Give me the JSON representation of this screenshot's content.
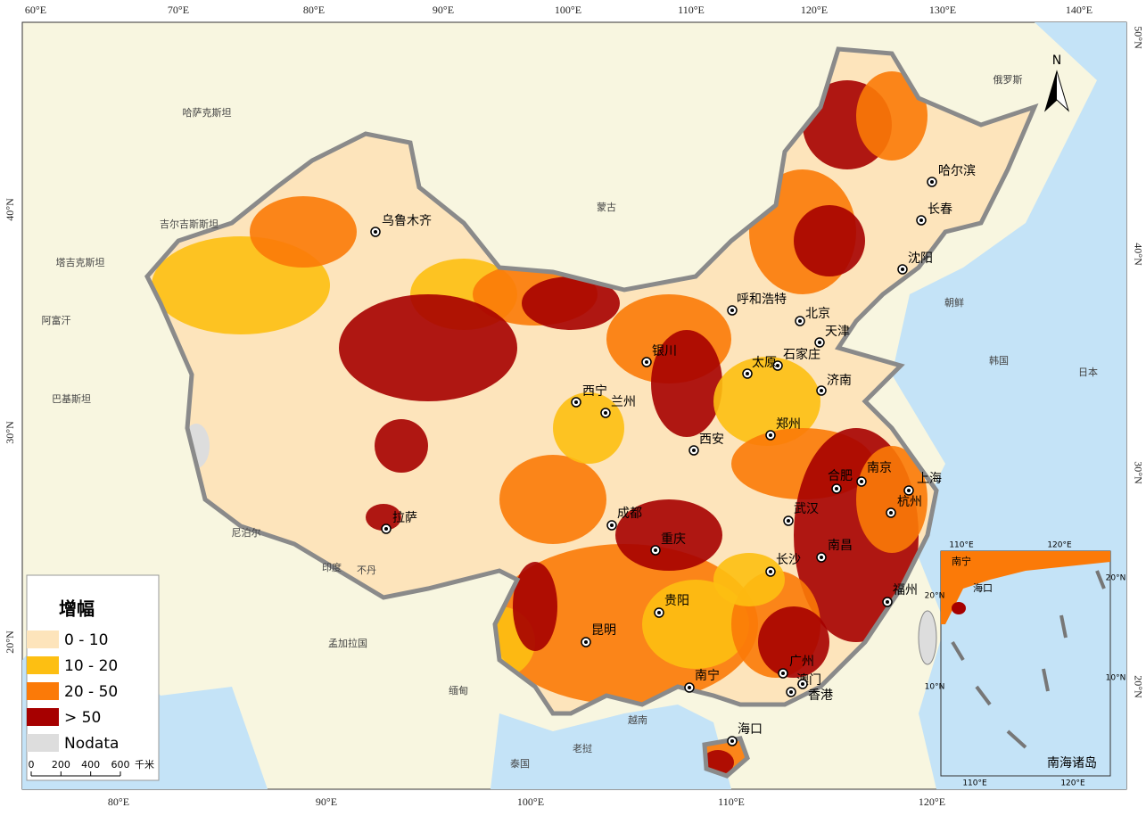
{
  "graticule": {
    "top": [
      "60°E",
      "70°E",
      "80°E",
      "90°E",
      "100°E",
      "110°E",
      "120°E",
      "130°E",
      "140°E"
    ],
    "bottom": [
      "80°E",
      "90°E",
      "100°E",
      "110°E",
      "120°E"
    ],
    "left": [
      "40°N",
      "30°N",
      "20°N"
    ],
    "right": [
      "50°N",
      "40°N",
      "30°N",
      "20°N"
    ]
  },
  "countries": [
    "哈萨克斯坦",
    "吉尔吉斯斯坦",
    "塔吉克斯坦",
    "阿富汗",
    "巴基斯坦",
    "尼泊尔",
    "印度",
    "不丹",
    "孟加拉国",
    "缅甸",
    "老挝",
    "泰国",
    "越南",
    "蒙古",
    "俄罗斯",
    "朝鲜",
    "韩国",
    "日本"
  ],
  "cities": [
    "乌鲁木齐",
    "哈尔滨",
    "长春",
    "沈阳",
    "呼和浩特",
    "北京",
    "天津",
    "石家庄",
    "太原",
    "银川",
    "济南",
    "西宁",
    "兰州",
    "郑州",
    "西安",
    "南京",
    "合肥",
    "上海",
    "杭州",
    "武汉",
    "成都",
    "重庆",
    "拉萨",
    "南昌",
    "长沙",
    "福州",
    "贵阳",
    "昆明",
    "南宁",
    "广州",
    "澳门",
    "香港",
    "海口"
  ],
  "north": "N",
  "legend": {
    "title": "增幅",
    "items": [
      {
        "label": "0 - 10",
        "color": "#fde4bb"
      },
      {
        "label": "10 - 20",
        "color": "#fdbf12"
      },
      {
        "label": "20 - 50",
        "color": "#fb7a08"
      },
      {
        "label": "> 50",
        "color": "#a60000"
      },
      {
        "label": "Nodata",
        "color": "#dddddd"
      }
    ]
  },
  "scale_bar": {
    "ticks": [
      0,
      200,
      400,
      600
    ],
    "unit": "千米"
  },
  "inset": {
    "title": "南海诸岛",
    "labels": [
      "110°E",
      "120°E",
      "110°E",
      "120°E",
      "20°N",
      "10°N",
      "20°N",
      "10°N",
      "南宁",
      "海口"
    ]
  }
}
